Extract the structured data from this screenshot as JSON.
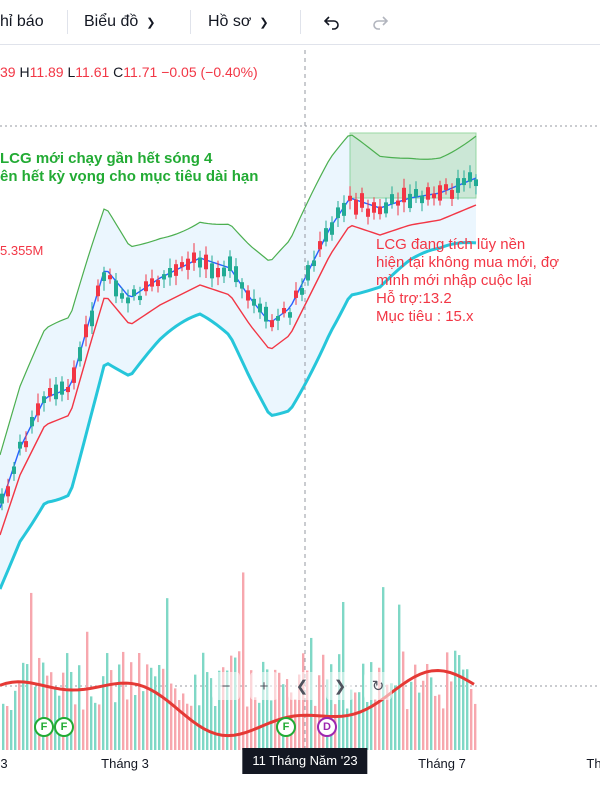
{
  "toolbar": {
    "items": [
      "hỉ báo",
      "Biểu đồ",
      "Hồ sơ"
    ],
    "undo_icon": "undo-icon",
    "redo_icon": "redo-icon"
  },
  "ohlc": {
    "o_prefix": "39",
    "h_label": "H",
    "h_value": "11.89",
    "l_label": "L",
    "l_value": "11.61",
    "c_label": "C",
    "c_value": "11.71",
    "change": "−0.05 (−0.40%)"
  },
  "annotations": {
    "green": "LCG mới chạy gần hết sóng 4\nên hết kỳ vọng cho mục tiêu dài hạn",
    "red": "LCG đang tích lũy nền\nhiện tại không mua mới, đợ\nmình mới nhập cuộc lại\nHỗ trợ:13.2\nMục tiêu : 15.x"
  },
  "volume_label": "5.355M",
  "xaxis": {
    "ticks": [
      "3",
      "Tháng 3",
      "Tháng 7",
      "Th"
    ],
    "crosshair_label": "11 Tháng Năm '23"
  },
  "events": [
    "F",
    "F",
    "F",
    "D"
  ],
  "colors": {
    "up": "#22ab94",
    "down": "#f23645",
    "band_fill": "#e3f2fd",
    "band_upper": "#4caf50",
    "band_lower": "#26c6da",
    "ma_fast": "#2962ff",
    "ma_slow": "#f23645",
    "green_text": "#22ab34",
    "red_text": "#f23645"
  },
  "chart_data": {
    "type": "candlestick",
    "series": [
      {
        "name": "price",
        "close": [
          8.6,
          8.8,
          8.9,
          9.3,
          9.5,
          9.8,
          10.2,
          10.6,
          11.0,
          11.3,
          11.8,
          12.2,
          12.5,
          12.4,
          12.7,
          12.6,
          12.9,
          12.8,
          13.0,
          12.9,
          12.7,
          12.5,
          12.2,
          12.0,
          12.3,
          12.5,
          12.9,
          13.6,
          14.0,
          14.3,
          14.5,
          14.4,
          14.2,
          14.3,
          14.1,
          14.4,
          14.3,
          14.1,
          14.4,
          14.6
        ]
      },
      {
        "name": "ma_fast"
      },
      {
        "name": "ma_slow"
      },
      {
        "name": "band_upper"
      },
      {
        "name": "band_lower"
      }
    ],
    "volume_ma": true,
    "highlight_box": "accumulation"
  }
}
